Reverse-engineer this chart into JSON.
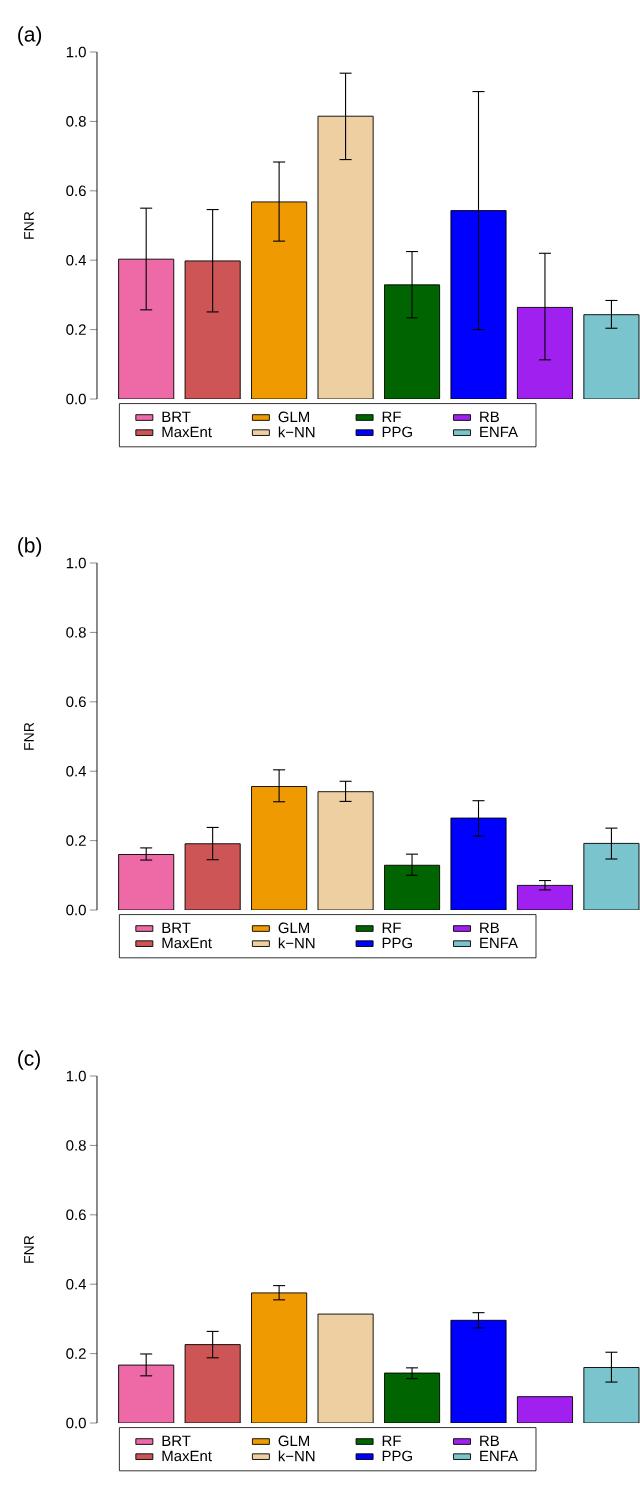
{
  "chart_data": [
    {
      "type": "bar",
      "title": "(a)",
      "ylabel": "FNR",
      "categories": [
        null,
        null,
        null,
        null,
        null,
        null,
        null,
        null
      ],
      "series": [
        {
          "name": "BRT",
          "color": "#ee6aa7",
          "values": [
            0.403,
            null,
            null,
            null,
            null,
            null,
            null,
            null
          ],
          "errors": [
            [
              0.257,
              0.55
            ],
            null,
            null,
            null,
            null,
            null,
            null,
            null
          ]
        },
        {
          "name": "MaxEnt",
          "color": "#cd5555",
          "values": [
            null,
            0.398,
            null,
            null,
            null,
            null,
            null,
            null
          ],
          "errors": [
            null,
            [
              0.251,
              0.546
            ],
            null,
            null,
            null,
            null,
            null,
            null
          ]
        },
        {
          "name": "GLM",
          "color": "#ee9a00",
          "values": [
            null,
            null,
            0.568,
            null,
            null,
            null,
            null,
            null
          ],
          "errors": [
            null,
            null,
            [
              0.455,
              0.683
            ],
            null,
            null,
            null,
            null,
            null
          ]
        },
        {
          "name": "k−NN",
          "color": "#eecfa1",
          "values": [
            null,
            null,
            null,
            0.815,
            null,
            null,
            null,
            null
          ],
          "errors": [
            null,
            null,
            null,
            [
              0.69,
              0.939
            ],
            null,
            null,
            null,
            null
          ]
        },
        {
          "name": "RF",
          "color": "#006400",
          "values": [
            null,
            null,
            null,
            null,
            0.329,
            null,
            null,
            null
          ],
          "errors": [
            null,
            null,
            null,
            null,
            [
              0.234,
              0.425
            ],
            null,
            null,
            null
          ]
        },
        {
          "name": "PPG",
          "color": "#0000ff",
          "values": [
            null,
            null,
            null,
            null,
            null,
            0.543,
            null,
            null
          ],
          "errors": [
            null,
            null,
            null,
            null,
            null,
            [
              0.2,
              0.886
            ],
            null,
            null
          ]
        },
        {
          "name": "RB",
          "color": "#a020f0",
          "values": [
            null,
            null,
            null,
            null,
            null,
            null,
            0.264,
            null
          ],
          "errors": [
            null,
            null,
            null,
            null,
            null,
            null,
            [
              0.113,
              0.42
            ],
            null
          ]
        },
        {
          "name": "ENFA",
          "color": "#7ac5cd",
          "values": [
            null,
            null,
            null,
            null,
            null,
            null,
            null,
            0.243
          ],
          "errors": [
            null,
            null,
            null,
            null,
            null,
            null,
            null,
            [
              0.204,
              0.284
            ]
          ]
        }
      ],
      "stacked": true,
      "ylim": [
        0,
        1
      ],
      "yticks": [
        {
          "value": 0,
          "label": "0.0"
        },
        {
          "value": 0.2,
          "label": "0.2"
        },
        {
          "value": 0.4,
          "label": "0.4"
        },
        {
          "value": 0.6,
          "label": "0.6"
        },
        {
          "value": 0.8,
          "label": "0.8"
        },
        {
          "value": 1,
          "label": "1.0"
        }
      ],
      "legend": "bottom"
    },
    {
      "type": "bar",
      "title": "(b)",
      "ylabel": "FNR",
      "categories": [
        null,
        null,
        null,
        null,
        null,
        null,
        null,
        null
      ],
      "series": [
        {
          "name": "BRT",
          "color": "#ee6aa7",
          "values": [
            0.16,
            null,
            null,
            null,
            null,
            null,
            null,
            null
          ],
          "errors": [
            [
              0.144,
              0.179
            ],
            null,
            null,
            null,
            null,
            null,
            null,
            null
          ]
        },
        {
          "name": "MaxEnt",
          "color": "#cd5555",
          "values": [
            null,
            0.191,
            null,
            null,
            null,
            null,
            null,
            null
          ],
          "errors": [
            null,
            [
              0.145,
              0.238
            ],
            null,
            null,
            null,
            null,
            null,
            null
          ]
        },
        {
          "name": "GLM",
          "color": "#ee9a00",
          "values": [
            null,
            null,
            0.356,
            null,
            null,
            null,
            null,
            null
          ],
          "errors": [
            null,
            null,
            [
              0.312,
              0.404
            ],
            null,
            null,
            null,
            null,
            null
          ]
        },
        {
          "name": "k−NN",
          "color": "#eecfa1",
          "values": [
            null,
            null,
            null,
            0.341,
            null,
            null,
            null,
            null
          ],
          "errors": [
            null,
            null,
            null,
            [
              0.313,
              0.371
            ],
            null,
            null,
            null,
            null
          ]
        },
        {
          "name": "RF",
          "color": "#006400",
          "values": [
            null,
            null,
            null,
            null,
            0.129,
            null,
            null,
            null
          ],
          "errors": [
            null,
            null,
            null,
            null,
            [
              0.1,
              0.161
            ],
            null,
            null,
            null
          ]
        },
        {
          "name": "PPG",
          "color": "#0000ff",
          "values": [
            null,
            null,
            null,
            null,
            null,
            0.265,
            null,
            null
          ],
          "errors": [
            null,
            null,
            null,
            null,
            null,
            [
              0.213,
              0.315
            ],
            null,
            null
          ]
        },
        {
          "name": "RB",
          "color": "#a020f0",
          "values": [
            null,
            null,
            null,
            null,
            null,
            null,
            0.071,
            null
          ],
          "errors": [
            null,
            null,
            null,
            null,
            null,
            null,
            [
              0.058,
              0.085
            ],
            null
          ]
        },
        {
          "name": "ENFA",
          "color": "#7ac5cd",
          "values": [
            null,
            null,
            null,
            null,
            null,
            null,
            null,
            0.192
          ],
          "errors": [
            null,
            null,
            null,
            null,
            null,
            null,
            null,
            [
              0.147,
              0.236
            ]
          ]
        }
      ],
      "stacked": true,
      "ylim": [
        0,
        1
      ],
      "yticks": [
        {
          "value": 0,
          "label": "0.0"
        },
        {
          "value": 0.2,
          "label": "0.2"
        },
        {
          "value": 0.4,
          "label": "0.4"
        },
        {
          "value": 0.6,
          "label": "0.6"
        },
        {
          "value": 0.8,
          "label": "0.8"
        },
        {
          "value": 1,
          "label": "1.0"
        }
      ],
      "legend": "bottom"
    },
    {
      "type": "bar",
      "title": "(c)",
      "ylabel": "FNR",
      "categories": [
        null,
        null,
        null,
        null,
        null,
        null,
        null,
        null
      ],
      "series": [
        {
          "name": "BRT",
          "color": "#ee6aa7",
          "values": [
            0.167,
            null,
            null,
            null,
            null,
            null,
            null,
            null
          ],
          "errors": [
            [
              0.136,
              0.199
            ],
            null,
            null,
            null,
            null,
            null,
            null,
            null
          ]
        },
        {
          "name": "MaxEnt",
          "color": "#cd5555",
          "values": [
            null,
            0.226,
            null,
            null,
            null,
            null,
            null,
            null
          ],
          "errors": [
            null,
            [
              0.188,
              0.264
            ],
            null,
            null,
            null,
            null,
            null,
            null
          ]
        },
        {
          "name": "GLM",
          "color": "#ee9a00",
          "values": [
            null,
            null,
            0.375,
            null,
            null,
            null,
            null,
            null
          ],
          "errors": [
            null,
            null,
            [
              0.355,
              0.396
            ],
            null,
            null,
            null,
            null,
            null
          ]
        },
        {
          "name": "k−NN",
          "color": "#eecfa1",
          "values": [
            null,
            null,
            null,
            0.314,
            null,
            null,
            null,
            null
          ]
        },
        {
          "name": "RF",
          "color": "#006400",
          "values": [
            null,
            null,
            null,
            null,
            0.144,
            null,
            null,
            null
          ],
          "errors": [
            null,
            null,
            null,
            null,
            [
              0.128,
              0.159
            ],
            null,
            null,
            null
          ]
        },
        {
          "name": "PPG",
          "color": "#0000ff",
          "values": [
            null,
            null,
            null,
            null,
            null,
            0.296,
            null,
            null
          ],
          "errors": [
            null,
            null,
            null,
            null,
            null,
            [
              0.274,
              0.318
            ],
            null,
            null
          ]
        },
        {
          "name": "RB",
          "color": "#a020f0",
          "values": [
            null,
            null,
            null,
            null,
            null,
            null,
            0.076,
            null
          ]
        },
        {
          "name": "ENFA",
          "color": "#7ac5cd",
          "values": [
            null,
            null,
            null,
            null,
            null,
            null,
            null,
            0.16
          ],
          "errors": [
            null,
            null,
            null,
            null,
            null,
            null,
            null,
            [
              0.118,
              0.204
            ]
          ]
        }
      ],
      "stacked": true,
      "ylim": [
        0,
        1
      ],
      "yticks": [
        {
          "value": 0,
          "label": "0.0"
        },
        {
          "value": 0.2,
          "label": "0.2"
        },
        {
          "value": 0.4,
          "label": "0.4"
        },
        {
          "value": 0.6,
          "label": "0.6"
        },
        {
          "value": 0.8,
          "label": "0.8"
        },
        {
          "value": 1,
          "label": "1.0"
        }
      ],
      "legend": "bottom"
    }
  ]
}
